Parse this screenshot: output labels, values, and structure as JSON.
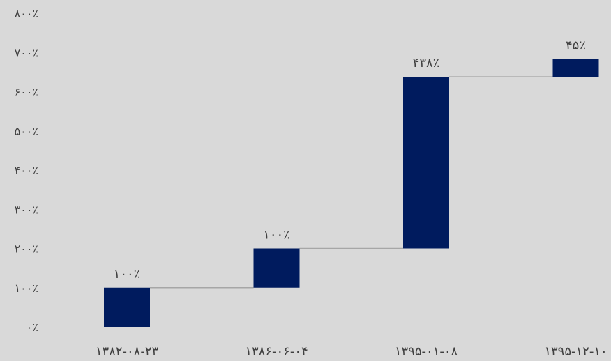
{
  "chart_data": {
    "type": "bar",
    "subtype": "waterfall",
    "title": "",
    "xlabel": "",
    "ylabel": "",
    "categories": [
      "۱۳۸۲-۰۸-۲۳",
      "۱۳۸۶-۰۶-۰۴",
      "۱۳۹۵-۰۱-۰۸",
      "۱۳۹۵-۱۲-۱۰"
    ],
    "series": [
      {
        "start": [
          0,
          100,
          200,
          638
        ],
        "values": [
          100,
          100,
          438,
          45
        ],
        "data_labels": [
          "۱۰۰٪",
          "۱۰۰٪",
          "۴۳۸٪",
          "۴۵٪"
        ]
      }
    ],
    "ylim": [
      0,
      800
    ],
    "y_ticks": [
      0,
      100,
      200,
      300,
      400,
      500,
      600,
      700,
      800
    ],
    "y_tick_labels": [
      "۰٪",
      "۱۰۰٪",
      "۲۰۰٪",
      "۳۰۰٪",
      "۴۰۰٪",
      "۵۰۰٪",
      "۶۰۰٪",
      "۷۰۰٪",
      "۸۰۰٪"
    ],
    "grid": false,
    "legend": "none",
    "colors": {
      "bar": "#001b5e",
      "connector": "#a6a6a6",
      "background": "#d9d9d9",
      "text": "#404040"
    }
  }
}
